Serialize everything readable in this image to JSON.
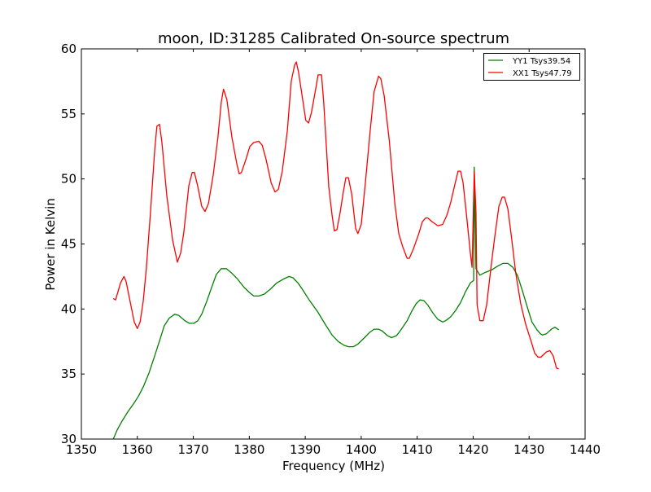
{
  "chart_data": {
    "type": "line",
    "title": "moon, ID:31285 Calibrated On-source spectrum",
    "xlabel": "Frequency (MHz)",
    "ylabel": "Power in Kelvin",
    "xlim": [
      1350,
      1440
    ],
    "ylim": [
      30,
      60
    ],
    "xticks": [
      1350,
      1360,
      1370,
      1380,
      1390,
      1400,
      1410,
      1420,
      1430,
      1440
    ],
    "yticks": [
      30,
      35,
      40,
      45,
      50,
      55,
      60
    ],
    "grid": false,
    "legend_position": "top-right",
    "series": [
      {
        "name": "YY1 Tsys39.54",
        "color": "#008000",
        "points": [
          [
            1355.7,
            30.0
          ],
          [
            1356.4,
            30.7
          ],
          [
            1357.3,
            31.4
          ],
          [
            1358.3,
            32.1
          ],
          [
            1359.3,
            32.7
          ],
          [
            1360.2,
            33.3
          ],
          [
            1361.05,
            34.0
          ],
          [
            1362.1,
            35.1
          ],
          [
            1363.1,
            36.4
          ],
          [
            1364.0,
            37.6
          ],
          [
            1364.8,
            38.7
          ],
          [
            1365.7,
            39.3
          ],
          [
            1366.7,
            39.6
          ],
          [
            1367.4,
            39.5
          ],
          [
            1368.5,
            39.1
          ],
          [
            1369.3,
            38.9
          ],
          [
            1370.1,
            38.9
          ],
          [
            1370.8,
            39.1
          ],
          [
            1371.5,
            39.6
          ],
          [
            1372.4,
            40.6
          ],
          [
            1373.3,
            41.7
          ],
          [
            1374.1,
            42.65
          ],
          [
            1375.0,
            43.1
          ],
          [
            1375.9,
            43.1
          ],
          [
            1376.75,
            42.8
          ],
          [
            1377.9,
            42.3
          ],
          [
            1379.1,
            41.65
          ],
          [
            1379.95,
            41.3
          ],
          [
            1380.8,
            41.0
          ],
          [
            1381.7,
            41.0
          ],
          [
            1382.7,
            41.15
          ],
          [
            1383.7,
            41.5
          ],
          [
            1384.9,
            42.0
          ],
          [
            1386.1,
            42.3
          ],
          [
            1387.1,
            42.5
          ],
          [
            1387.8,
            42.4
          ],
          [
            1388.7,
            42.0
          ],
          [
            1389.5,
            41.5
          ],
          [
            1390.7,
            40.7
          ],
          [
            1392.2,
            39.8
          ],
          [
            1393.6,
            38.8
          ],
          [
            1394.8,
            38.0
          ],
          [
            1395.9,
            37.5
          ],
          [
            1396.96,
            37.2
          ],
          [
            1397.7,
            37.1
          ],
          [
            1398.6,
            37.1
          ],
          [
            1399.4,
            37.3
          ],
          [
            1400.6,
            37.8
          ],
          [
            1401.5,
            38.2
          ],
          [
            1402.3,
            38.45
          ],
          [
            1403.1,
            38.45
          ],
          [
            1403.8,
            38.3
          ],
          [
            1404.7,
            37.95
          ],
          [
            1405.4,
            37.8
          ],
          [
            1406.3,
            37.95
          ],
          [
            1407.1,
            38.4
          ],
          [
            1408.2,
            39.1
          ],
          [
            1409.0,
            39.8
          ],
          [
            1409.8,
            40.4
          ],
          [
            1410.5,
            40.7
          ],
          [
            1411.2,
            40.65
          ],
          [
            1411.9,
            40.3
          ],
          [
            1412.8,
            39.7
          ],
          [
            1413.7,
            39.2
          ],
          [
            1414.55,
            39.0
          ],
          [
            1415.1,
            39.1
          ],
          [
            1416.0,
            39.4
          ],
          [
            1416.9,
            39.9
          ],
          [
            1417.75,
            40.5
          ],
          [
            1418.6,
            41.3
          ],
          [
            1419.5,
            42.0
          ],
          [
            1420.1,
            42.2
          ],
          [
            1420.2,
            50.9
          ],
          [
            1420.5,
            43.1
          ],
          [
            1421.2,
            42.6
          ],
          [
            1422.1,
            42.8
          ],
          [
            1423.3,
            43.0
          ],
          [
            1424.4,
            43.3
          ],
          [
            1425.3,
            43.5
          ],
          [
            1426.2,
            43.5
          ],
          [
            1427.1,
            43.2
          ],
          [
            1427.9,
            42.6
          ],
          [
            1428.8,
            41.4
          ],
          [
            1429.7,
            40.1
          ],
          [
            1430.5,
            39.0
          ],
          [
            1431.4,
            38.4
          ],
          [
            1432.0,
            38.1
          ],
          [
            1432.4,
            38.0
          ],
          [
            1433.1,
            38.1
          ],
          [
            1434.0,
            38.45
          ],
          [
            1434.6,
            38.6
          ],
          [
            1435.3,
            38.4
          ]
        ]
      },
      {
        "name": "XX1 Tsys47.79",
        "color": "#ff0000",
        "points": [
          [
            1355.7,
            40.8
          ],
          [
            1356.1,
            40.7
          ],
          [
            1357.0,
            42.0
          ],
          [
            1357.6,
            42.5
          ],
          [
            1358.0,
            42.1
          ],
          [
            1358.7,
            40.6
          ],
          [
            1359.45,
            39.0
          ],
          [
            1360.0,
            38.5
          ],
          [
            1360.5,
            39.0
          ],
          [
            1361.05,
            40.6
          ],
          [
            1361.6,
            43.1
          ],
          [
            1362.36,
            47.5
          ],
          [
            1363.1,
            52.2
          ],
          [
            1363.5,
            54.05
          ],
          [
            1363.96,
            54.2
          ],
          [
            1364.4,
            52.8
          ],
          [
            1365.27,
            48.7
          ],
          [
            1366.3,
            45.3
          ],
          [
            1367.16,
            43.6
          ],
          [
            1367.74,
            44.3
          ],
          [
            1368.3,
            45.9
          ],
          [
            1369.2,
            49.5
          ],
          [
            1369.8,
            50.5
          ],
          [
            1370.2,
            50.5
          ],
          [
            1370.8,
            49.4
          ],
          [
            1371.5,
            47.9
          ],
          [
            1372.1,
            47.5
          ],
          [
            1372.7,
            48.1
          ],
          [
            1373.55,
            50.3
          ],
          [
            1374.4,
            53.2
          ],
          [
            1375.0,
            55.9
          ],
          [
            1375.4,
            56.9
          ],
          [
            1376.0,
            56.1
          ],
          [
            1376.9,
            53.2
          ],
          [
            1377.8,
            51.1
          ],
          [
            1378.2,
            50.4
          ],
          [
            1378.6,
            50.5
          ],
          [
            1379.4,
            51.5
          ],
          [
            1380.1,
            52.5
          ],
          [
            1380.8,
            52.8
          ],
          [
            1381.7,
            52.9
          ],
          [
            1382.3,
            52.6
          ],
          [
            1383.0,
            51.5
          ],
          [
            1383.9,
            49.7
          ],
          [
            1384.6,
            49.0
          ],
          [
            1385.2,
            49.2
          ],
          [
            1385.9,
            50.6
          ],
          [
            1386.8,
            53.7
          ],
          [
            1387.5,
            57.5
          ],
          [
            1388.1,
            58.75
          ],
          [
            1388.4,
            59.0
          ],
          [
            1388.8,
            58.2
          ],
          [
            1389.5,
            56.2
          ],
          [
            1390.1,
            54.5
          ],
          [
            1390.6,
            54.3
          ],
          [
            1391.1,
            55.1
          ],
          [
            1391.9,
            57.0
          ],
          [
            1392.3,
            58.0
          ],
          [
            1392.9,
            58.0
          ],
          [
            1393.3,
            55.9
          ],
          [
            1394.2,
            49.4
          ],
          [
            1394.8,
            47.2
          ],
          [
            1395.2,
            46.0
          ],
          [
            1395.65,
            46.1
          ],
          [
            1396.2,
            47.35
          ],
          [
            1396.8,
            49.0
          ],
          [
            1397.25,
            50.1
          ],
          [
            1397.7,
            50.1
          ],
          [
            1398.3,
            48.85
          ],
          [
            1399.0,
            46.2
          ],
          [
            1399.4,
            45.8
          ],
          [
            1400.0,
            46.5
          ],
          [
            1400.7,
            49.5
          ],
          [
            1401.6,
            53.7
          ],
          [
            1402.3,
            56.7
          ],
          [
            1403.1,
            57.9
          ],
          [
            1403.5,
            57.7
          ],
          [
            1404.1,
            56.4
          ],
          [
            1405.0,
            53.0
          ],
          [
            1406.0,
            48.1
          ],
          [
            1406.7,
            45.8
          ],
          [
            1407.4,
            44.8
          ],
          [
            1408.2,
            43.9
          ],
          [
            1408.6,
            43.9
          ],
          [
            1409.3,
            44.6
          ],
          [
            1410.3,
            45.8
          ],
          [
            1410.9,
            46.7
          ],
          [
            1411.5,
            47.0
          ],
          [
            1411.9,
            47.0
          ],
          [
            1412.7,
            46.7
          ],
          [
            1413.7,
            46.4
          ],
          [
            1414.55,
            46.5
          ],
          [
            1415.3,
            47.2
          ],
          [
            1416.0,
            48.2
          ],
          [
            1416.7,
            49.5
          ],
          [
            1417.3,
            50.6
          ],
          [
            1417.75,
            50.6
          ],
          [
            1418.2,
            49.7
          ],
          [
            1418.9,
            46.85
          ],
          [
            1419.5,
            44.3
          ],
          [
            1419.8,
            43.2
          ],
          [
            1420.2,
            50.6
          ],
          [
            1420.5,
            47.5
          ],
          [
            1420.7,
            40.3
          ],
          [
            1421.2,
            39.1
          ],
          [
            1421.8,
            39.1
          ],
          [
            1422.4,
            40.3
          ],
          [
            1423.3,
            43.6
          ],
          [
            1423.9,
            45.7
          ],
          [
            1424.6,
            47.9
          ],
          [
            1425.2,
            48.6
          ],
          [
            1425.6,
            48.6
          ],
          [
            1426.2,
            47.7
          ],
          [
            1426.8,
            45.7
          ],
          [
            1427.6,
            42.8
          ],
          [
            1428.5,
            40.4
          ],
          [
            1429.4,
            38.8
          ],
          [
            1430.3,
            37.6
          ],
          [
            1431.0,
            36.6
          ],
          [
            1431.6,
            36.3
          ],
          [
            1432.1,
            36.3
          ],
          [
            1433.1,
            36.7
          ],
          [
            1433.7,
            36.8
          ],
          [
            1434.3,
            36.4
          ],
          [
            1434.9,
            35.45
          ],
          [
            1435.3,
            35.4
          ]
        ]
      }
    ]
  }
}
